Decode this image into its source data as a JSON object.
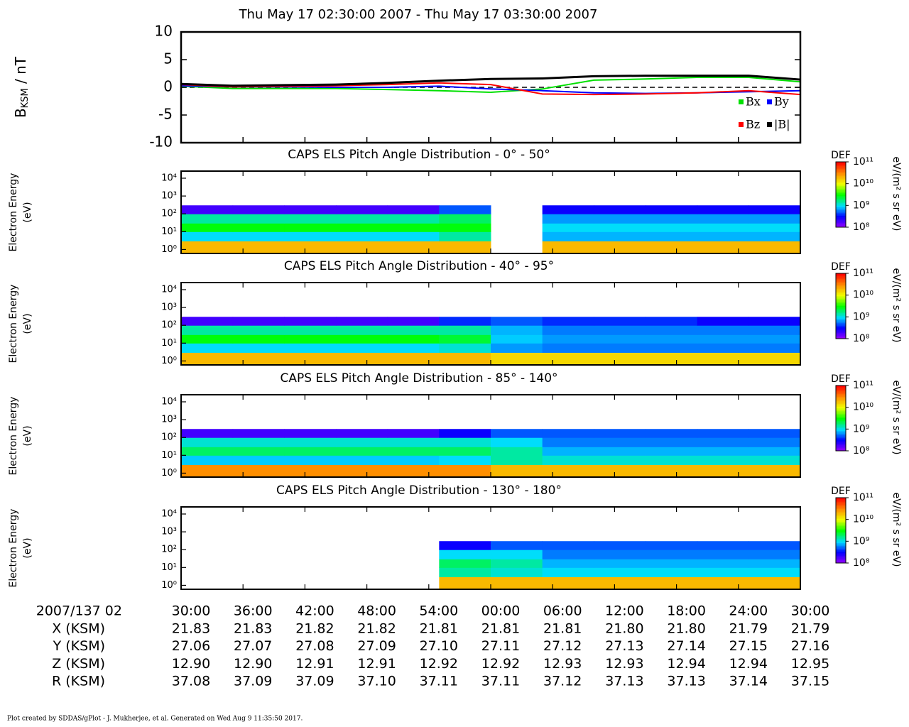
{
  "chart_data": [
    {
      "type": "line",
      "title": "Thu May 17 02:30:00 2007 - Thu May 17 03:30:00 2007",
      "ylabel": {
        "symbol": "B",
        "subscript": "KSM",
        "unit": " / nT"
      },
      "x": [
        0,
        5,
        10,
        15,
        20,
        25,
        30,
        35,
        40,
        45,
        50,
        55,
        60
      ],
      "xlim": [
        0,
        60
      ],
      "ylim": [
        -10,
        10
      ],
      "yticks": [
        -10,
        -5,
        0,
        5,
        10
      ],
      "zero_line": true,
      "legend": "lower right",
      "series": [
        {
          "name": "Bx",
          "color": "#00e000",
          "values": [
            0.2,
            -0.2,
            -0.2,
            -0.2,
            -0.4,
            -0.6,
            -0.9,
            -0.3,
            1.3,
            1.5,
            1.8,
            1.8,
            1.0
          ]
        },
        {
          "name": "By",
          "color": "#0000ff",
          "values": [
            0.3,
            0.1,
            0.1,
            0,
            0,
            0.2,
            -0.3,
            -0.6,
            -1.0,
            -1.1,
            -1.0,
            -0.8,
            -0.6
          ]
        },
        {
          "name": "Bz",
          "color": "#ff0000",
          "values": [
            0.5,
            0.1,
            0.2,
            0.3,
            0.5,
            0.8,
            0.5,
            -1.2,
            -1.3,
            -1.2,
            -1.0,
            -0.6,
            -1.3
          ]
        },
        {
          "name": "|B|",
          "color": "#000000",
          "values": [
            0.6,
            0.3,
            0.4,
            0.5,
            0.8,
            1.2,
            1.5,
            1.6,
            2.0,
            2.1,
            2.1,
            2.1,
            1.4
          ]
        }
      ]
    },
    {
      "type": "spectrogram",
      "title": "CAPS ELS Pitch Angle Distribution - 0° - 50°",
      "ylabel": [
        "Electron Energy",
        "(eV)"
      ],
      "log": true,
      "x_bins": [
        0,
        5,
        10,
        15,
        20,
        25,
        30,
        35,
        40,
        45,
        50,
        55,
        60
      ],
      "xlim": [
        0,
        60
      ],
      "energy_bins": [
        0.6,
        3,
        10,
        30,
        100,
        300,
        25000
      ],
      "ylim": [
        0.6,
        25000
      ],
      "yticks": [
        {
          "value": 1,
          "label": "10⁰"
        },
        {
          "value": 10,
          "label": "10¹"
        },
        {
          "value": 100,
          "label": "10²"
        },
        {
          "value": 1000,
          "label": "10³"
        },
        {
          "value": 10000,
          "label": "10⁴"
        }
      ],
      "colorbar": {
        "label": "DEF",
        "unit": "eV/(m² s sr eV)",
        "lim": [
          100000000.0,
          100000000000.0
        ],
        "ticks": [
          {
            "value": 100000000.0,
            "label": "10⁸"
          },
          {
            "value": 1000000000.0,
            "label": "10⁹"
          },
          {
            "value": 10000000000.0,
            "label": "10¹⁰"
          },
          {
            "value": 100000000000.0,
            "label": "10¹¹"
          }
        ]
      },
      "values": [
        [
          20000000000.0,
          20000000000.0,
          20000000000.0,
          20000000000.0,
          20000000000.0,
          20000000000.0,
          null,
          20000000000.0,
          20000000000.0,
          20000000000.0,
          20000000000.0,
          20000000000.0
        ],
        [
          1000000000.0,
          1000000000.0,
          1000000000.0,
          1000000000.0,
          1000000000.0,
          1500000000.0,
          null,
          800000000.0,
          800000000.0,
          800000000.0,
          800000000.0,
          800000000.0
        ],
        [
          3000000000.0,
          3000000000.0,
          3000000000.0,
          3000000000.0,
          3000000000.0,
          3000000000.0,
          null,
          1000000000.0,
          1000000000.0,
          1000000000.0,
          1000000000.0,
          1000000000.0
        ],
        [
          1500000000.0,
          1500000000.0,
          1500000000.0,
          1500000000.0,
          1500000000.0,
          2000000000.0,
          null,
          700000000.0,
          700000000.0,
          700000000.0,
          700000000.0,
          700000000.0
        ],
        [
          200000000.0,
          200000000.0,
          200000000.0,
          200000000.0,
          200000000.0,
          500000000.0,
          null,
          300000000.0,
          300000000.0,
          300000000.0,
          300000000.0,
          300000000.0
        ],
        [
          null,
          null,
          null,
          null,
          null,
          null,
          null,
          null,
          null,
          null,
          null,
          null
        ]
      ]
    },
    {
      "type": "spectrogram",
      "title": "CAPS ELS Pitch Angle Distribution - 40° - 95°",
      "ylabel": [
        "Electron Energy",
        "(eV)"
      ],
      "log": true,
      "x_bins": [
        0,
        5,
        10,
        15,
        20,
        25,
        30,
        35,
        40,
        45,
        50,
        55,
        60
      ],
      "xlim": [
        0,
        60
      ],
      "energy_bins": [
        0.6,
        3,
        10,
        30,
        100,
        300,
        25000
      ],
      "ylim": [
        0.6,
        25000
      ],
      "yticks": [
        {
          "value": 1,
          "label": "10⁰"
        },
        {
          "value": 10,
          "label": "10¹"
        },
        {
          "value": 100,
          "label": "10²"
        },
        {
          "value": 1000,
          "label": "10³"
        },
        {
          "value": 10000,
          "label": "10⁴"
        }
      ],
      "colorbar": {
        "label": "DEF",
        "unit": "eV/(m² s sr eV)",
        "lim": [
          100000000.0,
          100000000000.0
        ],
        "ticks": [
          {
            "value": 100000000.0,
            "label": "10⁸"
          },
          {
            "value": 1000000000.0,
            "label": "10⁹"
          },
          {
            "value": 10000000000.0,
            "label": "10¹⁰"
          },
          {
            "value": 100000000000.0,
            "label": "10¹¹"
          }
        ]
      },
      "values": [
        [
          20000000000.0,
          20000000000.0,
          20000000000.0,
          20000000000.0,
          20000000000.0,
          20000000000.0,
          15000000000.0,
          15000000000.0,
          15000000000.0,
          15000000000.0,
          15000000000.0,
          15000000000.0
        ],
        [
          1000000000.0,
          1000000000.0,
          1000000000.0,
          1000000000.0,
          1000000000.0,
          1200000000.0,
          700000000.0,
          600000000.0,
          600000000.0,
          600000000.0,
          600000000.0,
          600000000.0
        ],
        [
          3000000000.0,
          3000000000.0,
          3000000000.0,
          3000000000.0,
          3000000000.0,
          2500000000.0,
          900000000.0,
          700000000.0,
          700000000.0,
          700000000.0,
          700000000.0,
          700000000.0
        ],
        [
          1500000000.0,
          1500000000.0,
          1500000000.0,
          1500000000.0,
          1500000000.0,
          1500000000.0,
          800000000.0,
          600000000.0,
          600000000.0,
          600000000.0,
          600000000.0,
          600000000.0
        ],
        [
          200000000.0,
          200000000.0,
          200000000.0,
          200000000.0,
          200000000.0,
          400000000.0,
          500000000.0,
          400000000.0,
          400000000.0,
          400000000.0,
          300000000.0,
          300000000.0
        ],
        [
          null,
          null,
          null,
          null,
          null,
          null,
          null,
          null,
          null,
          null,
          null,
          null
        ]
      ]
    },
    {
      "type": "spectrogram",
      "title": "CAPS ELS Pitch Angle Distribution - 85° - 140°",
      "ylabel": [
        "Electron Energy",
        "(eV)"
      ],
      "log": true,
      "x_bins": [
        0,
        5,
        10,
        15,
        20,
        25,
        30,
        35,
        40,
        45,
        50,
        55,
        60
      ],
      "xlim": [
        0,
        60
      ],
      "energy_bins": [
        0.6,
        3,
        10,
        30,
        100,
        300,
        25000
      ],
      "ylim": [
        0.6,
        25000
      ],
      "yticks": [
        {
          "value": 1,
          "label": "10⁰"
        },
        {
          "value": 10,
          "label": "10¹"
        },
        {
          "value": 100,
          "label": "10²"
        },
        {
          "value": 1000,
          "label": "10³"
        },
        {
          "value": 10000,
          "label": "10⁴"
        }
      ],
      "colorbar": {
        "label": "DEF",
        "unit": "eV/(m² s sr eV)",
        "lim": [
          100000000.0,
          100000000000.0
        ],
        "ticks": [
          {
            "value": 100000000.0,
            "label": "10⁸"
          },
          {
            "value": 1000000000.0,
            "label": "10⁹"
          },
          {
            "value": 10000000000.0,
            "label": "10¹⁰"
          },
          {
            "value": 100000000000.0,
            "label": "10¹¹"
          }
        ]
      },
      "values": [
        [
          30000000000.0,
          30000000000.0,
          30000000000.0,
          30000000000.0,
          30000000000.0,
          30000000000.0,
          20000000000.0,
          20000000000.0,
          20000000000.0,
          20000000000.0,
          20000000000.0,
          20000000000.0
        ],
        [
          900000000.0,
          900000000.0,
          900000000.0,
          900000000.0,
          900000000.0,
          1000000000.0,
          1500000000.0,
          1200000000.0,
          1200000000.0,
          1200000000.0,
          1200000000.0,
          1200000000.0
        ],
        [
          2000000000.0,
          2000000000.0,
          2000000000.0,
          2000000000.0,
          2000000000.0,
          2000000000.0,
          1500000000.0,
          800000000.0,
          800000000.0,
          800000000.0,
          800000000.0,
          800000000.0
        ],
        [
          1200000000.0,
          1200000000.0,
          1200000000.0,
          1200000000.0,
          1200000000.0,
          1200000000.0,
          1000000000.0,
          600000000.0,
          600000000.0,
          600000000.0,
          600000000.0,
          600000000.0
        ],
        [
          200000000.0,
          200000000.0,
          200000000.0,
          200000000.0,
          200000000.0,
          300000000.0,
          500000000.0,
          500000000.0,
          500000000.0,
          500000000.0,
          500000000.0,
          500000000.0
        ],
        [
          null,
          null,
          null,
          null,
          null,
          null,
          null,
          null,
          null,
          null,
          null,
          null
        ]
      ]
    },
    {
      "type": "spectrogram",
      "title": "CAPS ELS Pitch Angle Distribution - 130° - 180°",
      "ylabel": [
        "Electron Energy",
        "(eV)"
      ],
      "log": true,
      "x_bins": [
        0,
        5,
        10,
        15,
        20,
        25,
        30,
        35,
        40,
        45,
        50,
        55,
        60
      ],
      "xlim": [
        0,
        60
      ],
      "energy_bins": [
        0.6,
        3,
        10,
        30,
        100,
        300,
        25000
      ],
      "ylim": [
        0.6,
        25000
      ],
      "yticks": [
        {
          "value": 1,
          "label": "10⁰"
        },
        {
          "value": 10,
          "label": "10¹"
        },
        {
          "value": 100,
          "label": "10²"
        },
        {
          "value": 1000,
          "label": "10³"
        },
        {
          "value": 10000,
          "label": "10⁴"
        }
      ],
      "colorbar": {
        "label": "DEF",
        "unit": "eV/(m² s sr eV)",
        "lim": [
          100000000.0,
          100000000000.0
        ],
        "ticks": [
          {
            "value": 100000000.0,
            "label": "10⁸"
          },
          {
            "value": 1000000000.0,
            "label": "10⁹"
          },
          {
            "value": 10000000000.0,
            "label": "10¹⁰"
          },
          {
            "value": 100000000000.0,
            "label": "10¹¹"
          }
        ]
      },
      "values": [
        [
          null,
          null,
          null,
          null,
          null,
          20000000000.0,
          20000000000.0,
          20000000000.0,
          20000000000.0,
          20000000000.0,
          20000000000.0,
          20000000000.0
        ],
        [
          null,
          null,
          null,
          null,
          null,
          1500000000.0,
          1200000000.0,
          1000000000.0,
          1000000000.0,
          1000000000.0,
          1000000000.0,
          1000000000.0
        ],
        [
          null,
          null,
          null,
          null,
          null,
          2000000000.0,
          1500000000.0,
          800000000.0,
          800000000.0,
          800000000.0,
          800000000.0,
          800000000.0
        ],
        [
          null,
          null,
          null,
          null,
          null,
          1000000000.0,
          1000000000.0,
          600000000.0,
          600000000.0,
          600000000.0,
          600000000.0,
          600000000.0
        ],
        [
          null,
          null,
          null,
          null,
          null,
          300000000.0,
          500000000.0,
          500000000.0,
          500000000.0,
          500000000.0,
          500000000.0,
          500000000.0
        ],
        [
          null,
          null,
          null,
          null,
          null,
          null,
          null,
          null,
          null,
          null,
          null,
          null
        ]
      ]
    }
  ],
  "ephemeris": {
    "time_label": "2007/137 02",
    "ticks": [
      {
        "value": 0,
        "label": "30:00"
      },
      {
        "value": 6,
        "label": "36:00"
      },
      {
        "value": 12,
        "label": "42:00"
      },
      {
        "value": 18,
        "label": "48:00"
      },
      {
        "value": 24,
        "label": "54:00"
      },
      {
        "value": 30,
        "label": "00:00"
      },
      {
        "value": 36,
        "label": "06:00"
      },
      {
        "value": 42,
        "label": "12:00"
      },
      {
        "value": 48,
        "label": "18:00"
      },
      {
        "value": 54,
        "label": "24:00"
      },
      {
        "value": 60,
        "label": "30:00"
      }
    ],
    "rows": [
      {
        "name": "X (KSM)",
        "values": [
          "21.83",
          "21.83",
          "21.82",
          "21.82",
          "21.81",
          "21.81",
          "21.81",
          "21.80",
          "21.80",
          "21.79",
          "21.79"
        ]
      },
      {
        "name": "Y (KSM)",
        "values": [
          "27.06",
          "27.07",
          "27.08",
          "27.09",
          "27.10",
          "27.11",
          "27.12",
          "27.13",
          "27.14",
          "27.15",
          "27.16"
        ]
      },
      {
        "name": "Z (KSM)",
        "values": [
          "12.90",
          "12.90",
          "12.91",
          "12.91",
          "12.92",
          "12.92",
          "12.93",
          "12.93",
          "12.94",
          "12.94",
          "12.95"
        ]
      },
      {
        "name": "R (KSM)",
        "values": [
          "37.08",
          "37.09",
          "37.09",
          "37.10",
          "37.11",
          "37.11",
          "37.12",
          "37.13",
          "37.13",
          "37.14",
          "37.15"
        ]
      }
    ]
  },
  "footer": "Plot created by SDDAS/gPlot - J. Mukherjee, et al.  Generated on Wed Aug 9 11:35:50 2017."
}
